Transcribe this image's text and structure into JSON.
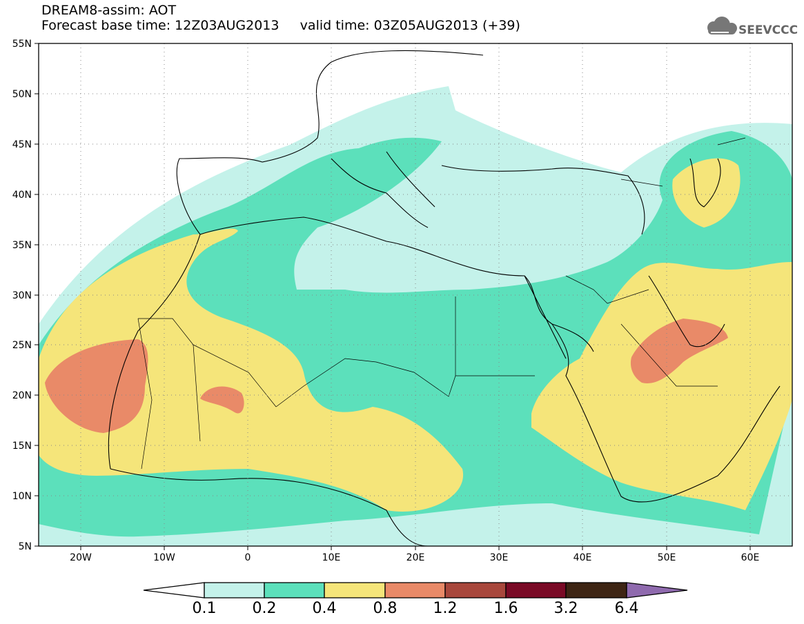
{
  "header": {
    "title_line1": "DREAM8-assim: AOT",
    "title_line2": "Forecast base time: 12Z03AUG2013     valid time: 03Z05AUG2013 (+39)",
    "logo_text": "SEEVCCC"
  },
  "map": {
    "projection": "lat-lon",
    "lon_range": [
      -25,
      65
    ],
    "lat_range": [
      5,
      55
    ],
    "lat_labels": [
      "55N",
      "50N",
      "45N",
      "40N",
      "35N",
      "30N",
      "25N",
      "20N",
      "15N",
      "10N",
      "5N"
    ],
    "lon_labels": [
      "20W",
      "10W",
      "0",
      "10E",
      "20E",
      "30E",
      "40E",
      "50E",
      "60E"
    ],
    "grid": "dotted"
  },
  "legend": {
    "levels": [
      "0.1",
      "0.2",
      "0.4",
      "0.8",
      "1.2",
      "1.6",
      "3.2",
      "6.4"
    ],
    "colors": [
      "#ffffff",
      "#c4f2ea",
      "#5ce0bb",
      "#f5e57a",
      "#e98a68",
      "#a8473c",
      "#7a0a26",
      "#3e2514",
      "#8f6aae"
    ]
  }
}
